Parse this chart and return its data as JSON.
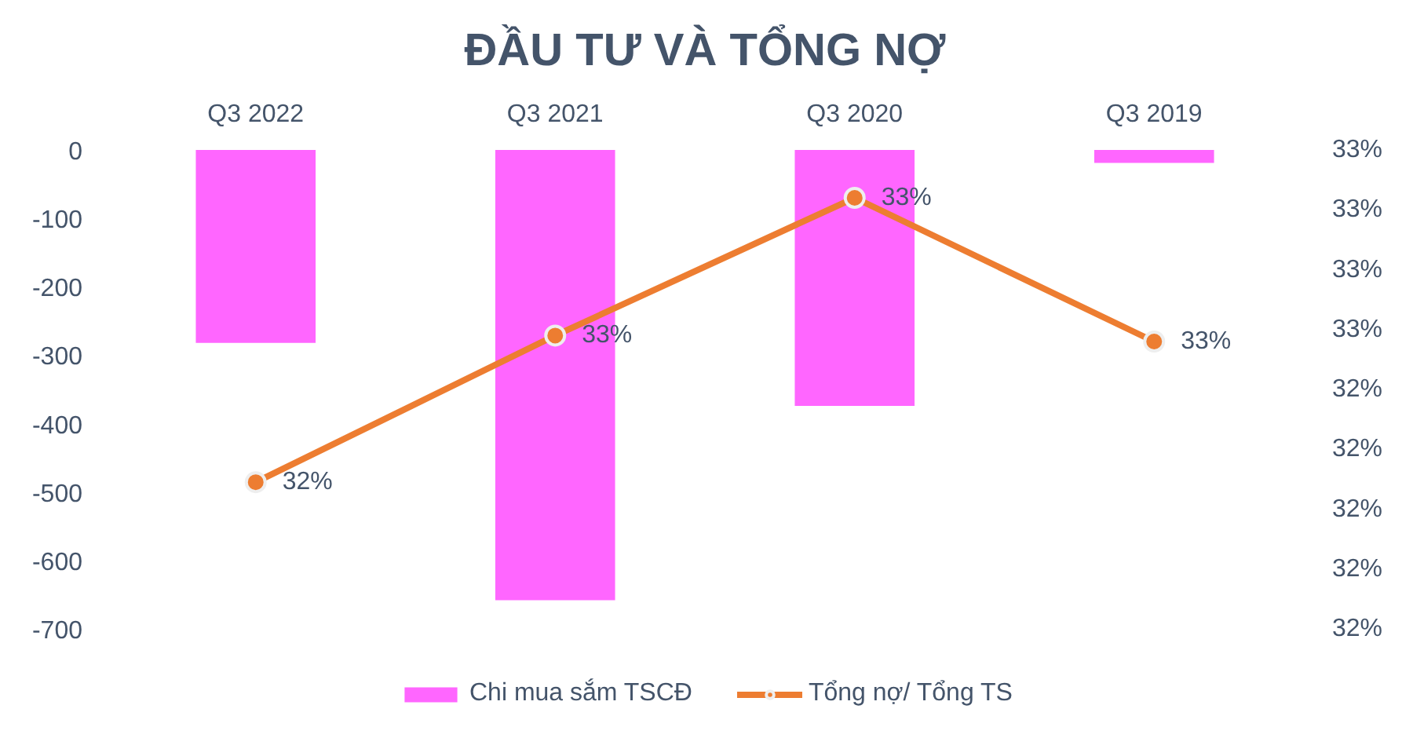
{
  "chart_data": {
    "type": "bar",
    "title": "ĐẦU TƯ VÀ TỔNG NỢ",
    "categories": [
      "Q3 2022",
      "Q3 2021",
      "Q3 2020",
      "Q3 2019"
    ],
    "series": [
      {
        "name": "Chi mua sắm TSCĐ",
        "color": "#ff66ff",
        "values": [
          -282,
          -658,
          -374,
          -19
        ]
      },
      {
        "name": "Tổng nợ/ Tổng TS",
        "type": "line",
        "axis": "y2",
        "color": "#ed7d31",
        "marker": "circle",
        "values": [
          32.09,
          32.58,
          33.04,
          32.56
        ],
        "value_labels": [
          "32%",
          "33%",
          "33%",
          "33%"
        ]
      }
    ],
    "ylim": [
      -700,
      0
    ],
    "yticks": [
      0,
      -100,
      -200,
      -300,
      -400,
      -500,
      -600,
      -700
    ],
    "y2lim": [
      31.6,
      33.2
    ],
    "y2ticks": [
      {
        "value": 33.2,
        "label": "33%"
      },
      {
        "value": 33.0,
        "label": "33%"
      },
      {
        "value": 32.8,
        "label": "33%"
      },
      {
        "value": 32.6,
        "label": "33%"
      },
      {
        "value": 32.4,
        "label": "32%"
      },
      {
        "value": 32.2,
        "label": "32%"
      },
      {
        "value": 32.0,
        "label": "32%"
      },
      {
        "value": 31.8,
        "label": "32%"
      },
      {
        "value": 31.6,
        "label": "32%"
      }
    ],
    "legend": "bottom"
  }
}
